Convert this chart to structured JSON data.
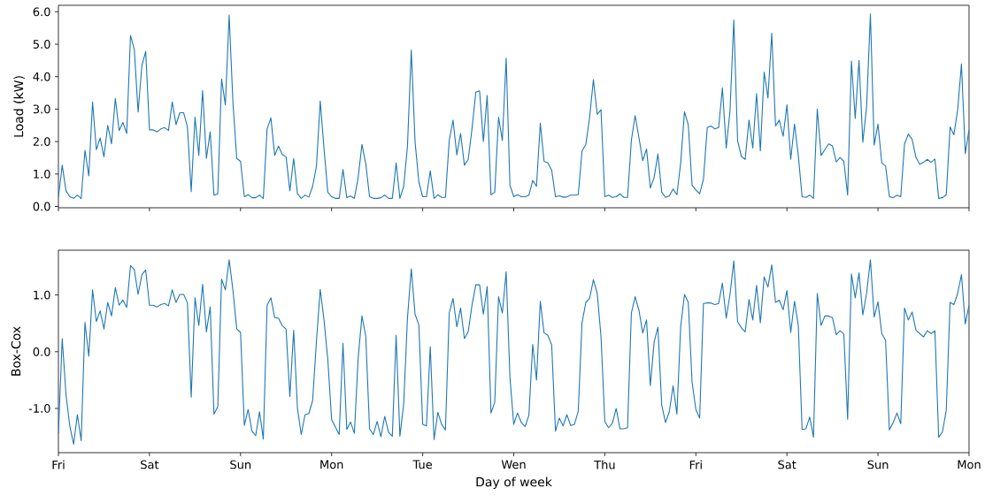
{
  "chart_data": [
    {
      "type": "line",
      "ylabel": "Load (kW)",
      "ylim": [
        -0.04,
        6.2
      ],
      "grid": false,
      "marker": "none",
      "line_style": "solid",
      "categories": [
        null,
        null,
        null,
        null,
        null,
        null,
        null,
        null,
        null,
        null,
        null,
        null,
        null,
        null,
        null,
        null,
        null,
        null,
        null,
        null,
        null,
        null,
        null,
        null,
        null,
        null,
        null,
        null,
        null,
        null,
        null,
        null,
        null,
        null,
        null,
        null,
        null,
        null,
        null,
        null,
        null,
        null,
        null,
        null,
        null,
        null,
        null,
        null,
        null,
        null,
        null,
        null,
        null,
        null,
        null,
        null,
        null,
        null,
        null,
        null,
        null,
        null,
        null,
        null,
        null,
        null,
        null,
        null,
        null,
        null,
        null,
        null,
        null,
        null,
        null,
        null,
        null,
        null,
        null,
        null,
        null,
        null,
        null,
        null,
        null,
        null,
        null,
        null,
        null,
        null,
        null,
        null,
        null,
        null,
        null,
        null,
        null,
        null,
        null,
        null,
        null,
        null,
        null,
        null,
        null,
        null,
        null,
        null,
        null,
        null,
        null,
        null,
        null,
        null,
        null,
        null,
        null,
        null,
        null,
        null,
        null,
        null,
        null,
        null,
        null,
        null,
        null,
        null,
        null,
        null,
        null,
        null,
        null,
        null,
        null,
        null,
        null,
        null,
        null,
        null,
        null,
        null,
        null,
        null,
        null,
        null,
        null,
        null,
        null,
        null,
        null,
        null,
        null,
        null,
        null,
        null,
        null,
        null,
        null,
        null,
        null,
        null,
        null,
        null,
        null,
        null,
        null,
        null,
        null,
        null,
        null,
        null,
        null,
        null,
        null,
        null,
        null,
        null,
        null,
        null,
        null,
        null,
        null,
        null,
        null,
        null,
        null,
        null,
        null,
        null,
        null,
        null,
        null,
        null,
        null,
        null,
        null,
        null,
        null,
        null,
        null,
        null,
        null,
        null,
        null,
        null,
        null,
        null,
        null,
        null,
        null,
        null,
        null,
        null,
        null,
        null,
        null,
        null,
        null,
        null,
        null,
        null,
        null,
        null,
        null,
        null,
        null,
        null,
        null,
        null,
        null,
        null,
        null,
        null,
        null,
        null,
        null,
        null,
        null,
        null,
        null
      ],
      "yticks": [
        {
          "value": 0,
          "label": "0.0"
        },
        {
          "value": 1,
          "label": "1.0"
        },
        {
          "value": 2,
          "label": "2.0"
        },
        {
          "value": 3,
          "label": "3.0"
        },
        {
          "value": 4,
          "label": "4.0"
        },
        {
          "value": 5,
          "label": "5.0"
        },
        {
          "value": 6,
          "label": "6.0"
        }
      ],
      "series": [
        {
          "color": "#1f77b4",
          "values": [
            0.28,
            1.27,
            0.48,
            0.3,
            0.25,
            0.35,
            0.24,
            1.73,
            0.94,
            3.22,
            1.75,
            2.11,
            1.53,
            2.5,
            1.93,
            3.33,
            2.34,
            2.59,
            2.25,
            5.27,
            4.84,
            2.91,
            4.34,
            4.78,
            2.36,
            2.36,
            2.3,
            2.39,
            2.43,
            2.34,
            3.22,
            2.52,
            2.89,
            2.89,
            2.45,
            0.46,
            2.75,
            1.57,
            3.57,
            1.48,
            2.3,
            0.35,
            0.39,
            3.93,
            3.13,
            5.9,
            3.19,
            1.48,
            1.39,
            0.3,
            0.36,
            0.27,
            0.27,
            0.35,
            0.24,
            2.39,
            2.73,
            1.57,
            1.86,
            1.6,
            1.53,
            0.48,
            1.48,
            0.39,
            0.25,
            0.35,
            0.29,
            0.62,
            1.23,
            3.25,
            1.78,
            0.44,
            0.3,
            0.25,
            0.25,
            1.14,
            0.27,
            0.32,
            0.25,
            0.89,
            1.91,
            1.32,
            0.3,
            0.25,
            0.25,
            0.27,
            0.35,
            0.25,
            0.25,
            1.34,
            0.25,
            0.62,
            1.87,
            4.82,
            1.98,
            0.75,
            0.3,
            0.3,
            1.1,
            0.25,
            0.36,
            0.28,
            0.28,
            2.03,
            2.66,
            1.59,
            2.25,
            1.27,
            1.45,
            2.39,
            3.52,
            3.56,
            2.0,
            3.42,
            0.36,
            0.44,
            2.75,
            2.03,
            4.57,
            0.66,
            0.3,
            0.36,
            0.3,
            0.3,
            0.35,
            0.8,
            0.62,
            2.57,
            1.39,
            1.34,
            1.12,
            0.3,
            0.33,
            0.29,
            0.29,
            0.35,
            0.35,
            0.36,
            1.71,
            1.91,
            2.75,
            3.91,
            2.84,
            2.98,
            0.3,
            0.35,
            0.28,
            0.3,
            0.39,
            0.28,
            0.28,
            2.04,
            2.8,
            2.12,
            1.41,
            1.77,
            0.57,
            0.89,
            1.62,
            0.44,
            0.28,
            0.33,
            0.54,
            0.36,
            1.34,
            2.92,
            2.52,
            0.66,
            0.51,
            0.39,
            0.84,
            2.43,
            2.48,
            2.39,
            2.43,
            3.66,
            1.8,
            2.94,
            5.75,
            2.03,
            1.54,
            1.45,
            2.66,
            1.8,
            3.48,
            1.71,
            4.14,
            3.34,
            5.34,
            2.48,
            2.66,
            2.16,
            3.13,
            1.45,
            2.54,
            1.57,
            0.3,
            0.28,
            0.35,
            0.25,
            3.0,
            1.57,
            1.75,
            1.93,
            1.87,
            1.37,
            1.51,
            1.39,
            0.35,
            4.48,
            2.71,
            4.5,
            1.98,
            3.07,
            5.93,
            1.89,
            2.54,
            1.34,
            1.25,
            0.3,
            0.27,
            0.35,
            0.3,
            1.93,
            2.23,
            2.07,
            1.51,
            1.3,
            1.36,
            1.45,
            1.36,
            1.46,
            0.25,
            0.27,
            0.36,
            2.45,
            2.21,
            2.98,
            4.39,
            1.63,
            2.36
          ]
        }
      ]
    },
    {
      "type": "line",
      "ylabel": "Box-Cox",
      "xlabel": "Day of week",
      "ylim": [
        -1.78,
        1.79
      ],
      "grid": false,
      "marker": "none",
      "line_style": "solid",
      "categories": [
        "Fri",
        null,
        null,
        null,
        null,
        null,
        null,
        null,
        null,
        null,
        null,
        null,
        null,
        null,
        null,
        null,
        null,
        null,
        null,
        null,
        null,
        null,
        null,
        null,
        "Sat",
        null,
        null,
        null,
        null,
        null,
        null,
        null,
        null,
        null,
        null,
        null,
        null,
        null,
        null,
        null,
        null,
        null,
        null,
        null,
        null,
        null,
        null,
        null,
        "Sun",
        null,
        null,
        null,
        null,
        null,
        null,
        null,
        null,
        null,
        null,
        null,
        null,
        null,
        null,
        null,
        null,
        null,
        null,
        null,
        null,
        null,
        null,
        null,
        "Mon",
        null,
        null,
        null,
        null,
        null,
        null,
        null,
        null,
        null,
        null,
        null,
        null,
        null,
        null,
        null,
        null,
        null,
        null,
        null,
        null,
        null,
        null,
        null,
        "Tue",
        null,
        null,
        null,
        null,
        null,
        null,
        null,
        null,
        null,
        null,
        null,
        null,
        null,
        null,
        null,
        null,
        null,
        null,
        null,
        null,
        null,
        null,
        null,
        "Wen",
        null,
        null,
        null,
        null,
        null,
        null,
        null,
        null,
        null,
        null,
        null,
        null,
        null,
        null,
        null,
        null,
        null,
        null,
        null,
        null,
        null,
        null,
        null,
        "Thu",
        null,
        null,
        null,
        null,
        null,
        null,
        null,
        null,
        null,
        null,
        null,
        null,
        null,
        null,
        null,
        null,
        null,
        null,
        null,
        null,
        null,
        null,
        null,
        "Fri",
        null,
        null,
        null,
        null,
        null,
        null,
        null,
        null,
        null,
        null,
        null,
        null,
        null,
        null,
        null,
        null,
        null,
        null,
        null,
        null,
        null,
        null,
        null,
        "Sat",
        null,
        null,
        null,
        null,
        null,
        null,
        null,
        null,
        null,
        null,
        null,
        null,
        null,
        null,
        null,
        null,
        null,
        null,
        null,
        null,
        null,
        null,
        null,
        "Sun",
        null,
        null,
        null,
        null,
        null,
        null,
        null,
        null,
        null,
        null,
        null,
        null,
        null,
        null,
        null,
        null,
        null,
        null,
        null,
        null,
        null,
        null,
        null,
        "Mon"
      ],
      "yticks": [
        {
          "value": -1,
          "label": "-1.0"
        },
        {
          "value": 0,
          "label": "0.0"
        },
        {
          "value": 1,
          "label": "1.0"
        }
      ],
      "series": [
        {
          "color": "#1f77b4",
          "values": [
            -1.44,
            0.23,
            -0.76,
            -1.31,
            -1.63,
            -1.11,
            -1.57,
            0.52,
            -0.08,
            1.09,
            0.53,
            0.72,
            0.4,
            0.87,
            0.63,
            1.13,
            0.82,
            0.91,
            0.78,
            1.52,
            1.45,
            1.01,
            1.36,
            1.44,
            0.82,
            0.82,
            0.79,
            0.83,
            0.85,
            0.81,
            1.09,
            0.87,
            1.01,
            1.01,
            0.86,
            -0.8,
            0.95,
            0.46,
            1.19,
            0.35,
            0.79,
            -1.1,
            -0.97,
            1.28,
            1.09,
            1.62,
            1.08,
            0.4,
            0.34,
            -1.3,
            -1.02,
            -1.4,
            -1.48,
            -1.06,
            -1.54,
            0.82,
            0.95,
            0.6,
            0.59,
            0.46,
            0.4,
            -0.79,
            0.38,
            -1.0,
            -1.46,
            -1.11,
            -1.09,
            -0.86,
            0.18,
            1.1,
            0.56,
            -0.14,
            -1.2,
            -1.33,
            -1.46,
            0.15,
            -1.37,
            -1.24,
            -1.44,
            -0.11,
            0.63,
            0.27,
            -1.36,
            -1.46,
            -1.23,
            -1.5,
            -1.14,
            -1.42,
            -1.49,
            0.29,
            -1.49,
            -0.92,
            0.6,
            1.46,
            0.66,
            0.47,
            -1.28,
            -1.31,
            0.09,
            -1.55,
            -1.07,
            -1.28,
            -1.38,
            0.68,
            0.94,
            0.44,
            0.77,
            0.23,
            0.35,
            0.82,
            1.18,
            1.18,
            0.66,
            1.15,
            -1.08,
            -0.89,
            0.97,
            0.68,
            1.41,
            -0.45,
            -1.28,
            -1.08,
            -1.25,
            -1.32,
            -1.12,
            0.13,
            -0.5,
            0.89,
            0.33,
            0.29,
            0.12,
            -1.4,
            -1.17,
            -1.31,
            -1.11,
            -1.3,
            -1.28,
            -1.05,
            0.51,
            0.87,
            0.94,
            1.27,
            1.03,
            0.27,
            -1.23,
            -1.34,
            -1.26,
            -1.0,
            -1.36,
            -1.36,
            -1.34,
            0.68,
            0.97,
            0.73,
            0.33,
            0.56,
            -0.6,
            0.17,
            0.43,
            -0.94,
            -1.25,
            -1.06,
            -0.6,
            -1.1,
            0.44,
            1.01,
            0.87,
            -0.53,
            -1.02,
            -1.17,
            0.85,
            0.86,
            0.86,
            0.83,
            0.85,
            1.21,
            0.59,
            1.01,
            1.6,
            0.53,
            0.42,
            0.35,
            0.92,
            0.56,
            1.17,
            0.51,
            1.32,
            1.14,
            1.53,
            0.87,
            0.91,
            0.74,
            1.08,
            0.34,
            0.89,
            0.46,
            -1.37,
            -1.36,
            -1.15,
            -1.51,
            1.03,
            0.46,
            0.63,
            0.63,
            0.6,
            0.3,
            0.37,
            0.31,
            -1.19,
            1.37,
            0.95,
            1.39,
            0.65,
            1.03,
            1.62,
            0.61,
            0.88,
            0.32,
            0.2,
            -1.38,
            -1.25,
            -1.08,
            -1.27,
            0.77,
            0.56,
            0.7,
            0.38,
            0.32,
            0.26,
            0.37,
            0.32,
            0.37,
            -1.51,
            -1.41,
            -1.03,
            0.87,
            0.83,
            1.03,
            1.36,
            0.49,
            0.82
          ]
        }
      ]
    }
  ]
}
